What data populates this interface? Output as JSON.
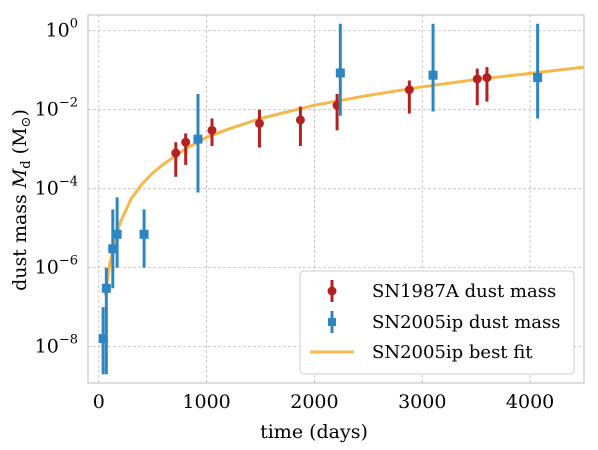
{
  "chart_data": {
    "type": "scatter",
    "xlabel": "time (days)",
    "ylabel": "dust mass M_d (M_⊙)",
    "ylabel_parts": {
      "prefix": "dust mass ",
      "symbol": "M",
      "subscript": "d",
      "unit_open": " (M",
      "unit_sub": "⊙",
      "unit_close": ")"
    },
    "x_scale": "linear",
    "y_scale": "log",
    "xlim": [
      -100,
      4500
    ],
    "ylim": [
      1.2e-09,
      2.5
    ],
    "grid": true,
    "grid_style": "dashed",
    "legend_position": "lower-right",
    "x_ticks": [
      0,
      1000,
      2000,
      3000,
      4000
    ],
    "x_tick_labels": [
      "0",
      "1000",
      "2000",
      "3000",
      "4000"
    ],
    "y_ticks": [
      {
        "value": 1e-08,
        "base": "10",
        "exp": "−8"
      },
      {
        "value": 1e-06,
        "base": "10",
        "exp": "−6"
      },
      {
        "value": 0.0001,
        "base": "10",
        "exp": "−4"
      },
      {
        "value": 0.01,
        "base": "10",
        "exp": "−2"
      },
      {
        "value": 1,
        "base": "10",
        "exp": "0"
      }
    ],
    "series": [
      {
        "name": "SN1987A dust mass",
        "color": "#b22222",
        "marker": "circle",
        "points": [
          {
            "x": 714,
            "y": 0.0008,
            "ylo": 0.0002,
            "yhi": 0.0015
          },
          {
            "x": 806,
            "y": 0.0015,
            "ylo": 0.0004,
            "yhi": 0.0025
          },
          {
            "x": 1050,
            "y": 0.003,
            "ylo": 0.0012,
            "yhi": 0.006
          },
          {
            "x": 1490,
            "y": 0.0045,
            "ylo": 0.0011,
            "yhi": 0.01
          },
          {
            "x": 1870,
            "y": 0.0055,
            "ylo": 0.0012,
            "yhi": 0.012
          },
          {
            "x": 2210,
            "y": 0.013,
            "ylo": 0.003,
            "yhi": 0.025
          },
          {
            "x": 2880,
            "y": 0.032,
            "ylo": 0.008,
            "yhi": 0.055
          },
          {
            "x": 3510,
            "y": 0.06,
            "ylo": 0.013,
            "yhi": 0.11
          },
          {
            "x": 3600,
            "y": 0.065,
            "ylo": 0.016,
            "yhi": 0.12
          }
        ]
      },
      {
        "name": "SN2005ip dust mass",
        "color": "#2e86c1",
        "marker": "square",
        "points": [
          {
            "x": 40,
            "y": 1.6e-08,
            "ylo": 2e-09,
            "yhi": 1e-07
          },
          {
            "x": 70,
            "y": 3e-07,
            "ylo": 2e-09,
            "yhi": 1e-06
          },
          {
            "x": 130,
            "y": 3e-06,
            "ylo": 3e-07,
            "yhi": 3e-05
          },
          {
            "x": 170,
            "y": 7e-06,
            "ylo": 1e-06,
            "yhi": 6e-05
          },
          {
            "x": 420,
            "y": 7e-06,
            "ylo": 1e-06,
            "yhi": 3e-05
          },
          {
            "x": 920,
            "y": 0.0018,
            "ylo": 8e-05,
            "yhi": 0.025
          },
          {
            "x": 2240,
            "y": 0.085,
            "ylo": 0.007,
            "yhi": 1.5
          },
          {
            "x": 3100,
            "y": 0.075,
            "ylo": 0.009,
            "yhi": 1.5
          },
          {
            "x": 4070,
            "y": 0.065,
            "ylo": 0.006,
            "yhi": 1.5
          }
        ]
      }
    ],
    "fit": {
      "name": "SN2005ip best fit",
      "color": "#f6b84b",
      "points": [
        [
          60,
          2e-07
        ],
        [
          100,
          1.2e-06
        ],
        [
          150,
          5e-06
        ],
        [
          200,
          1.4e-05
        ],
        [
          300,
          5.5e-05
        ],
        [
          400,
          0.00013
        ],
        [
          500,
          0.00025
        ],
        [
          600,
          0.00042
        ],
        [
          700,
          0.00065
        ],
        [
          800,
          0.001
        ],
        [
          1000,
          0.002
        ],
        [
          1200,
          0.0032
        ],
        [
          1500,
          0.006
        ],
        [
          2000,
          0.013
        ],
        [
          2500,
          0.023
        ],
        [
          3000,
          0.038
        ],
        [
          3500,
          0.058
        ],
        [
          4000,
          0.083
        ],
        [
          4500,
          0.12
        ]
      ]
    }
  }
}
